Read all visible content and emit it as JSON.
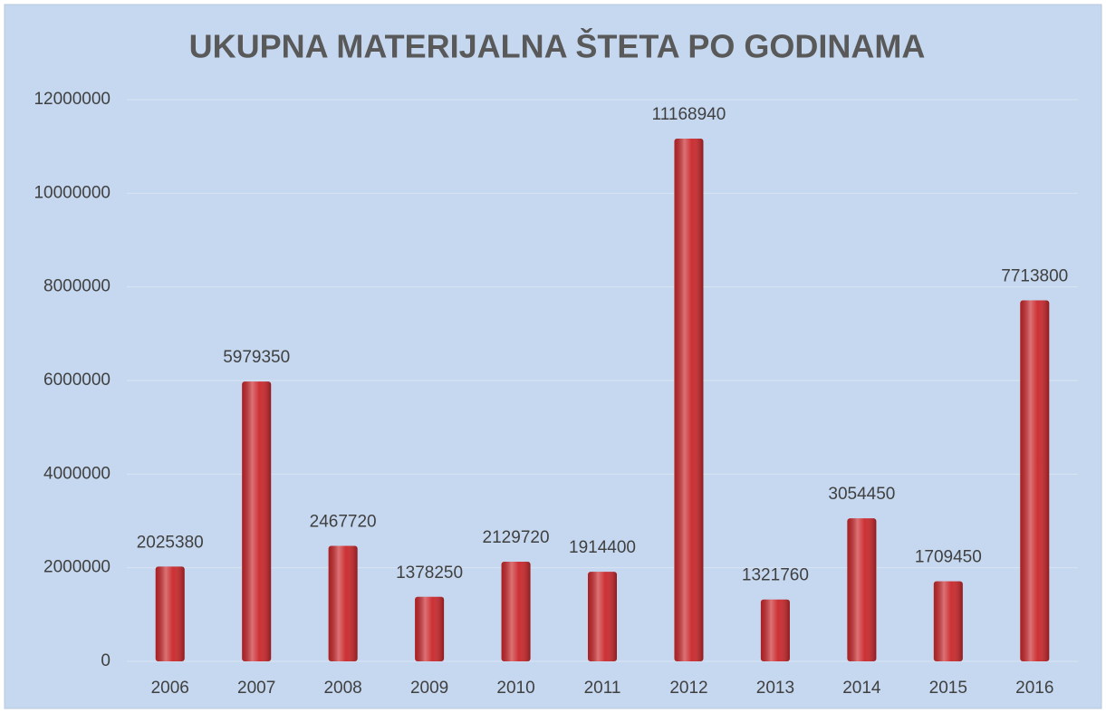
{
  "chart_data": {
    "type": "bar",
    "title": "UKUPNA MATERIJALNA ŠTETA PO GODINAMA",
    "categories": [
      "2006",
      "2007",
      "2008",
      "2009",
      "2010",
      "2011",
      "2012",
      "2013",
      "2014",
      "2015",
      "2016"
    ],
    "values": [
      2025380,
      5979350,
      2467720,
      1378250,
      2129720,
      1914400,
      11168940,
      1321760,
      3054450,
      1709450,
      7713800
    ],
    "color": "#c9262a",
    "ylim": [
      0,
      12000000
    ],
    "yticks": [
      0,
      2000000,
      4000000,
      6000000,
      8000000,
      10000000,
      12000000
    ],
    "grid": true
  }
}
